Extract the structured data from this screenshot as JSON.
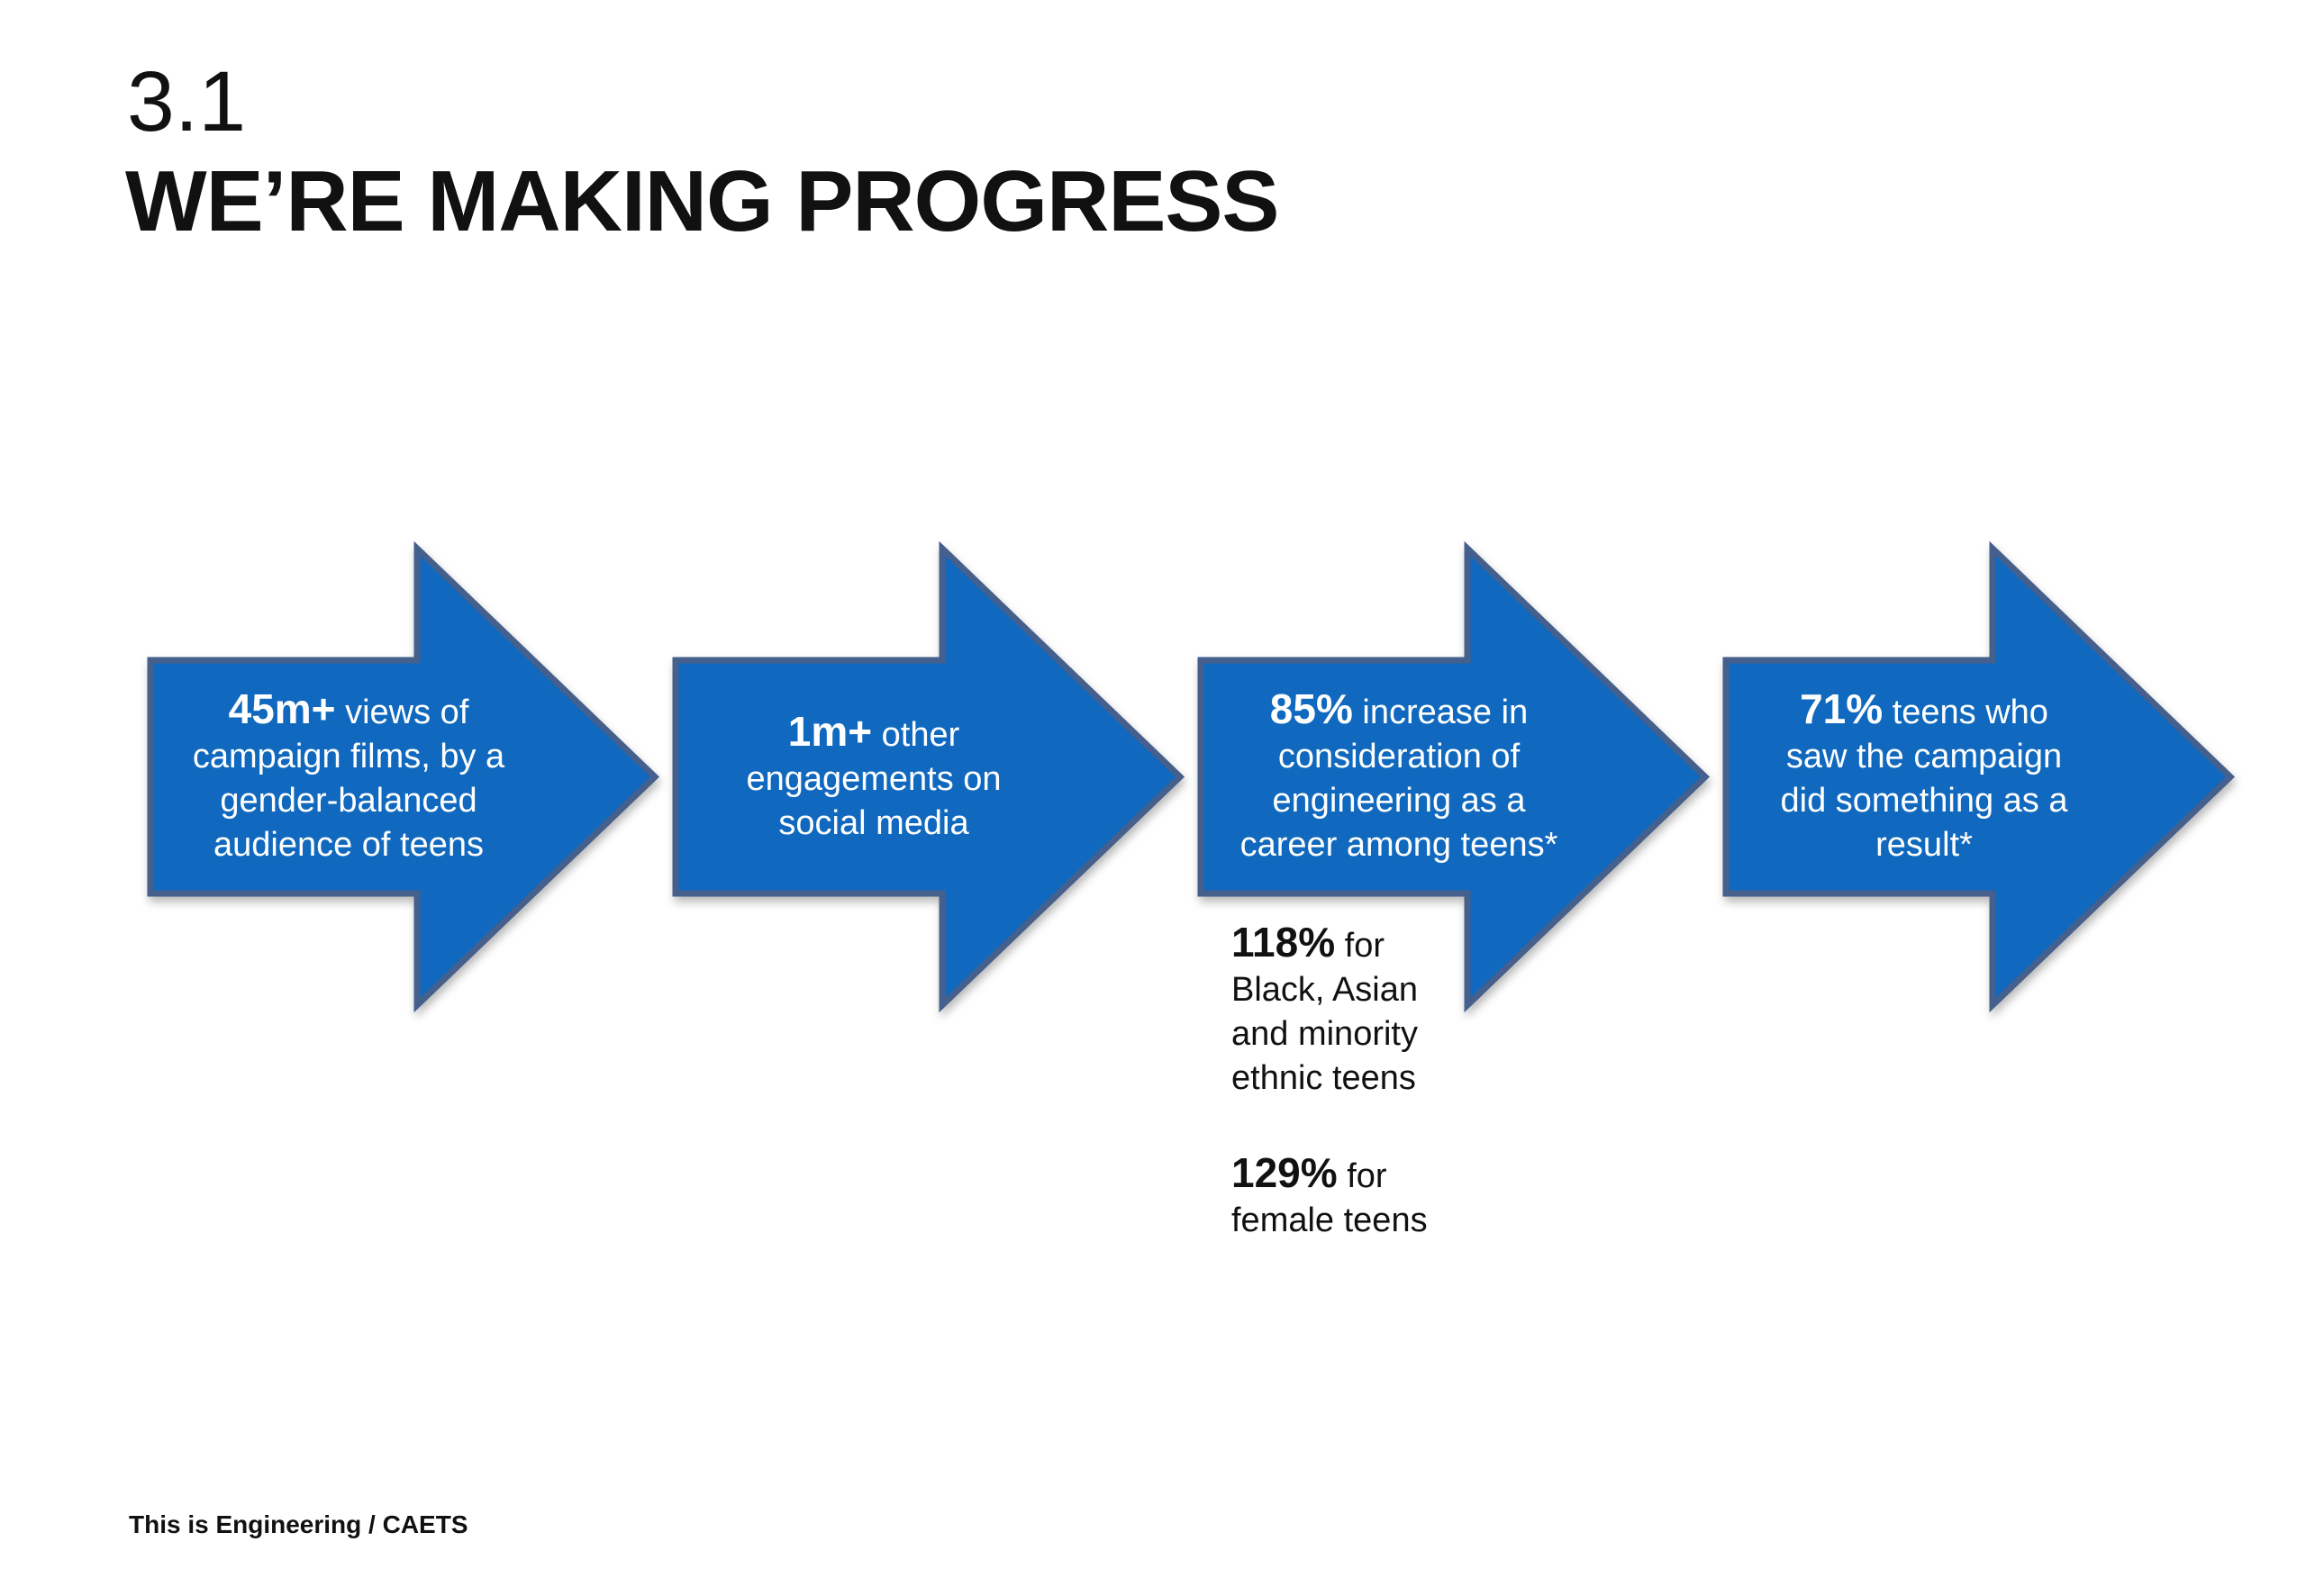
{
  "slide": {
    "section_number": "3.1",
    "title": "WE’RE MAKING PROGRESS",
    "footer": "This is Engineering / CAETS"
  },
  "colors": {
    "background": "#FFFFFF",
    "arrow_fill": "#1069BE",
    "arrow_border": "#45608C",
    "arrow_text": "#FFFFFF",
    "text_dark": "#111111"
  },
  "arrows": [
    {
      "name": "arrow-campaign-views",
      "lines": [
        [
          {
            "text": "45m+",
            "bold": true
          },
          {
            "text": " views of"
          }
        ],
        [
          {
            "text": "campaign films, by a"
          }
        ],
        [
          {
            "text": "gender-balanced"
          }
        ],
        [
          {
            "text": "audience of teens"
          }
        ]
      ]
    },
    {
      "name": "arrow-social-engagements",
      "lines": [
        [
          {
            "text": "1m+",
            "bold": true
          },
          {
            "text": " other"
          }
        ],
        [
          {
            "text": "engagements on"
          }
        ],
        [
          {
            "text": "social media"
          }
        ]
      ]
    },
    {
      "name": "arrow-career-consideration",
      "lines": [
        [
          {
            "text": "85%",
            "bold": true
          },
          {
            "text": " increase in"
          }
        ],
        [
          {
            "text": "consideration of"
          }
        ],
        [
          {
            "text": "engineering as a"
          }
        ],
        [
          {
            "text": "career among teens*"
          }
        ]
      ]
    },
    {
      "name": "arrow-action-taken",
      "lines": [
        [
          {
            "text": "71%",
            "bold": true
          },
          {
            "text": " teens who"
          }
        ],
        [
          {
            "text": "saw the campaign"
          }
        ],
        [
          {
            "text": "did something as a"
          }
        ],
        [
          {
            "text": "result*"
          }
        ]
      ]
    }
  ],
  "callouts": [
    {
      "name": "callout-bame-teens",
      "lines": [
        [
          {
            "text": "118%",
            "bold": true
          },
          {
            "text": " for"
          }
        ],
        [
          {
            "text": "Black, Asian"
          }
        ],
        [
          {
            "text": "and minority"
          }
        ],
        [
          {
            "text": "ethnic teens"
          }
        ]
      ]
    },
    {
      "name": "callout-female-teens",
      "lines": [
        [
          {
            "text": "129%",
            "bold": true
          },
          {
            "text": " for"
          }
        ],
        [
          {
            "text": "female teens"
          }
        ]
      ]
    }
  ]
}
